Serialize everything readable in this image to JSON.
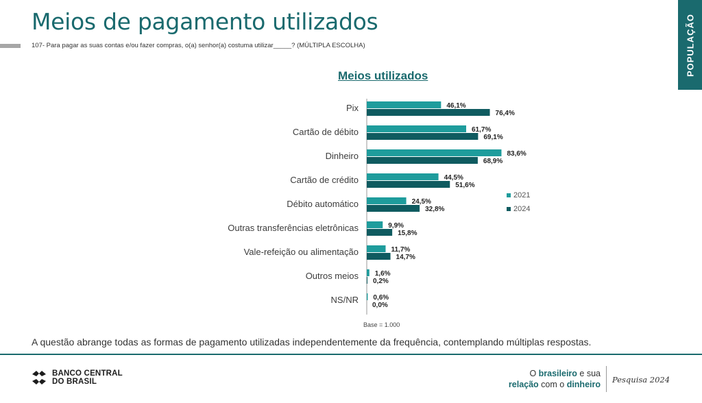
{
  "header": {
    "title": "Meios de pagamento utilizados",
    "question": "107- Para pagar as suas contas e/ou fazer compras, o(a) senhor(a) costuma utilizar_____? (MÚLTIPLA ESCOLHA)",
    "side_tab": "POPULAÇÃO"
  },
  "chart_data": {
    "type": "bar",
    "orientation": "horizontal",
    "title": "Meios utilizados",
    "categories": [
      "Pix",
      "Cartão de débito",
      "Dinheiro",
      "Cartão de crédito",
      "Débito automático",
      "Outras transferências eletrônicas",
      "Vale-refeição ou alimentação",
      "Outros meios",
      "NS/NR"
    ],
    "series": [
      {
        "name": "2021",
        "values": [
          46.1,
          61.7,
          83.6,
          44.5,
          24.5,
          9.9,
          11.7,
          1.6,
          0.6
        ],
        "labels": [
          "46,1%",
          "61,7%",
          "83,6%",
          "44,5%",
          "24,5%",
          "9,9%",
          "11,7%",
          "1,6%",
          "0,6%"
        ],
        "color": "#1e9c9c"
      },
      {
        "name": "2024",
        "values": [
          76.4,
          69.1,
          68.9,
          51.6,
          32.8,
          15.8,
          14.7,
          0.2,
          0.0
        ],
        "labels": [
          "76,4%",
          "69,1%",
          "68,9%",
          "51,6%",
          "32,8%",
          "15,8%",
          "14,7%",
          "0,2%",
          "0,0%"
        ],
        "color": "#0f5b60"
      }
    ],
    "xlim": [
      0,
      100
    ],
    "grid": false,
    "legend_position": "right"
  },
  "base_note": "Base = 1.000",
  "footnote": "A questão abrange todas as formas de pagamento utilizadas independentemente da frequência, contemplando múltiplas respostas.",
  "footer": {
    "logo_line1": "BANCO CENTRAL",
    "logo_line2": "DO BRASIL",
    "brand_o": "O ",
    "brand_brasileiro": "brasileiro",
    "brand_e_sua": " e sua",
    "brand_relacao": "relação",
    "brand_com_o": " com o ",
    "brand_dinheiro": "dinheiro",
    "survey": "Pesquisa 2024"
  }
}
